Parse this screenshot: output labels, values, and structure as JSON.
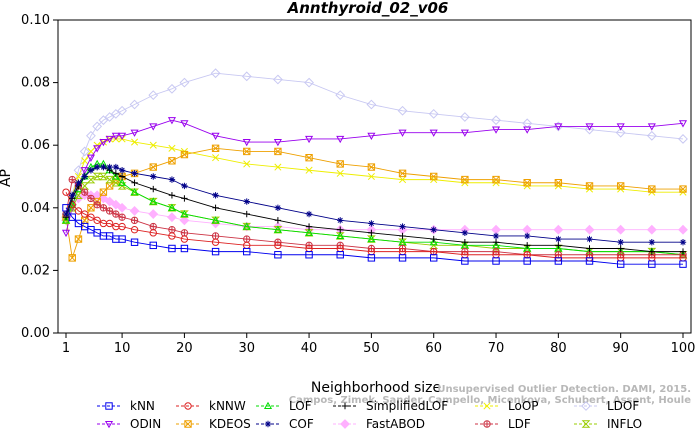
{
  "chart_data": {
    "type": "line",
    "title": "Annthyroid_02_v06",
    "xlabel": "Neighborhood size",
    "ylabel": "AP",
    "xlim": [
      1,
      100
    ],
    "ylim": [
      0.0,
      0.1
    ],
    "xticks": [
      "1",
      "10",
      "20",
      "30",
      "40",
      "50",
      "60",
      "70",
      "80",
      "90",
      "100"
    ],
    "yticks": [
      "0.00",
      "0.02",
      "0.04",
      "0.06",
      "0.08",
      "0.10"
    ],
    "grid": false,
    "legend_position": "bottom",
    "x": [
      1,
      2,
      3,
      4,
      5,
      6,
      7,
      8,
      9,
      10,
      12,
      15,
      18,
      20,
      25,
      30,
      35,
      40,
      45,
      50,
      55,
      60,
      65,
      70,
      75,
      80,
      85,
      90,
      95,
      100
    ],
    "series": [
      {
        "name": "kNN",
        "color": "#0000ee",
        "marker": "square",
        "values": [
          0.04,
          0.037,
          0.035,
          0.034,
          0.033,
          0.032,
          0.031,
          0.031,
          0.03,
          0.03,
          0.029,
          0.028,
          0.027,
          0.027,
          0.026,
          0.026,
          0.025,
          0.025,
          0.025,
          0.024,
          0.024,
          0.024,
          0.023,
          0.023,
          0.023,
          0.023,
          0.023,
          0.022,
          0.022,
          0.022
        ]
      },
      {
        "name": "kNNW",
        "color": "#dd2222",
        "marker": "circle",
        "values": [
          0.045,
          0.041,
          0.039,
          0.038,
          0.037,
          0.036,
          0.035,
          0.035,
          0.034,
          0.034,
          0.033,
          0.032,
          0.031,
          0.03,
          0.029,
          0.028,
          0.028,
          0.027,
          0.027,
          0.026,
          0.026,
          0.026,
          0.025,
          0.025,
          0.025,
          0.024,
          0.024,
          0.024,
          0.024,
          0.024
        ]
      },
      {
        "name": "LOF",
        "color": "#00dd00",
        "marker": "triangle-up",
        "values": [
          0.036,
          0.041,
          0.046,
          0.05,
          0.053,
          0.054,
          0.054,
          0.052,
          0.05,
          0.048,
          0.045,
          0.042,
          0.04,
          0.038,
          0.036,
          0.034,
          0.033,
          0.032,
          0.031,
          0.03,
          0.029,
          0.029,
          0.028,
          0.028,
          0.027,
          0.027,
          0.026,
          0.026,
          0.026,
          0.025
        ]
      },
      {
        "name": "SimplifiedLOF",
        "color": "#000000",
        "marker": "plus",
        "values": [
          0.037,
          0.043,
          0.047,
          0.05,
          0.052,
          0.053,
          0.053,
          0.052,
          0.051,
          0.05,
          0.048,
          0.046,
          0.044,
          0.043,
          0.04,
          0.038,
          0.036,
          0.034,
          0.033,
          0.032,
          0.031,
          0.03,
          0.029,
          0.029,
          0.028,
          0.028,
          0.027,
          0.027,
          0.026,
          0.026
        ]
      },
      {
        "name": "LoOP",
        "color": "#eeee00",
        "marker": "x",
        "values": [
          0.038,
          0.044,
          0.05,
          0.055,
          0.058,
          0.06,
          0.061,
          0.062,
          0.062,
          0.062,
          0.061,
          0.06,
          0.059,
          0.058,
          0.056,
          0.054,
          0.053,
          0.052,
          0.051,
          0.05,
          0.049,
          0.049,
          0.048,
          0.048,
          0.047,
          0.047,
          0.046,
          0.046,
          0.045,
          0.045
        ]
      },
      {
        "name": "LDOF",
        "color": "#c8c8f2",
        "marker": "diamond",
        "values": [
          0.036,
          0.044,
          0.052,
          0.058,
          0.063,
          0.066,
          0.068,
          0.069,
          0.07,
          0.071,
          0.073,
          0.076,
          0.078,
          0.08,
          0.083,
          0.082,
          0.081,
          0.08,
          0.076,
          0.073,
          0.071,
          0.07,
          0.069,
          0.068,
          0.067,
          0.066,
          0.065,
          0.064,
          0.063,
          0.062
        ]
      },
      {
        "name": "ODIN",
        "color": "#9900ee",
        "marker": "triangle-down",
        "values": [
          0.032,
          0.04,
          0.047,
          0.052,
          0.056,
          0.059,
          0.061,
          0.062,
          0.063,
          0.063,
          0.064,
          0.066,
          0.068,
          0.067,
          0.063,
          0.061,
          0.061,
          0.062,
          0.062,
          0.063,
          0.064,
          0.064,
          0.064,
          0.065,
          0.065,
          0.066,
          0.066,
          0.066,
          0.066,
          0.067
        ]
      },
      {
        "name": "KDEOS",
        "color": "#eea000",
        "marker": "boxed-x",
        "values": [
          0.037,
          0.024,
          0.03,
          0.036,
          0.04,
          0.042,
          0.045,
          0.047,
          0.049,
          0.05,
          0.051,
          0.053,
          0.055,
          0.057,
          0.059,
          0.058,
          0.058,
          0.056,
          0.054,
          0.053,
          0.051,
          0.05,
          0.049,
          0.049,
          0.048,
          0.048,
          0.047,
          0.047,
          0.046,
          0.046
        ]
      },
      {
        "name": "COF",
        "color": "#000088",
        "marker": "asterisk",
        "values": [
          0.038,
          0.044,
          0.048,
          0.05,
          0.052,
          0.053,
          0.053,
          0.053,
          0.053,
          0.052,
          0.051,
          0.05,
          0.049,
          0.047,
          0.044,
          0.042,
          0.04,
          0.038,
          0.036,
          0.035,
          0.034,
          0.033,
          0.032,
          0.031,
          0.031,
          0.03,
          0.03,
          0.029,
          0.029,
          0.029
        ]
      },
      {
        "name": "FastABOD",
        "color": "#ffb0ff",
        "marker": "diamond-filled",
        "values": [
          0.037,
          0.041,
          0.043,
          0.044,
          0.044,
          0.044,
          0.043,
          0.042,
          0.041,
          0.04,
          0.039,
          0.038,
          0.037,
          0.036,
          0.035,
          0.034,
          0.034,
          0.033,
          0.033,
          0.033,
          0.033,
          0.033,
          0.033,
          0.033,
          0.033,
          0.033,
          0.033,
          0.033,
          0.033,
          0.033
        ]
      },
      {
        "name": "LDF",
        "color": "#cc3344",
        "marker": "circle-plus",
        "values": [
          0.038,
          0.049,
          0.047,
          0.045,
          0.043,
          0.041,
          0.04,
          0.039,
          0.038,
          0.037,
          0.036,
          0.034,
          0.033,
          0.032,
          0.031,
          0.03,
          0.029,
          0.028,
          0.028,
          0.027,
          0.027,
          0.026,
          0.026,
          0.026,
          0.025,
          0.025,
          0.025,
          0.025,
          0.025,
          0.025
        ]
      },
      {
        "name": "INFLO",
        "color": "#99cc00",
        "marker": "hourglass",
        "values": [
          0.036,
          0.04,
          0.044,
          0.047,
          0.049,
          0.05,
          0.05,
          0.049,
          0.048,
          0.047,
          0.045,
          0.042,
          0.04,
          0.038,
          0.036,
          0.034,
          0.033,
          0.032,
          0.031,
          0.03,
          0.029,
          0.028,
          0.028,
          0.027,
          0.027,
          0.027,
          0.026,
          0.026,
          0.026,
          0.025
        ]
      }
    ],
    "legend_rows": [
      [
        "kNN",
        "kNNW",
        "LOF",
        "SimplifiedLOF",
        "LoOP",
        "LDOF"
      ],
      [
        "ODIN",
        "KDEOS",
        "COF",
        "FastABOD",
        "LDF",
        "INFLO"
      ]
    ],
    "watermark": [
      "Unsupervised Outlier Detection. DAMI, 2015.",
      "Campos, Zimek, Sander, Campello, Micenkova, Schubert, Assent, Houle"
    ]
  }
}
